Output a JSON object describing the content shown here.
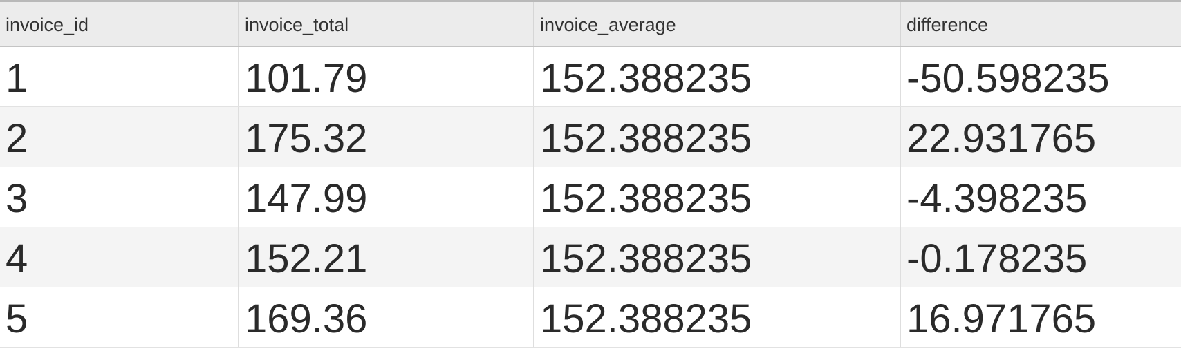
{
  "table": {
    "columns": [
      "invoice_id",
      "invoice_total",
      "invoice_average",
      "difference"
    ],
    "rows": [
      [
        "1",
        "101.79",
        "152.388235",
        "-50.598235"
      ],
      [
        "2",
        "175.32",
        "152.388235",
        "22.931765"
      ],
      [
        "3",
        "147.99",
        "152.388235",
        "-4.398235"
      ],
      [
        "4",
        "152.21",
        "152.388235",
        "-0.178235"
      ],
      [
        "5",
        "169.36",
        "152.388235",
        "16.971765"
      ]
    ]
  }
}
